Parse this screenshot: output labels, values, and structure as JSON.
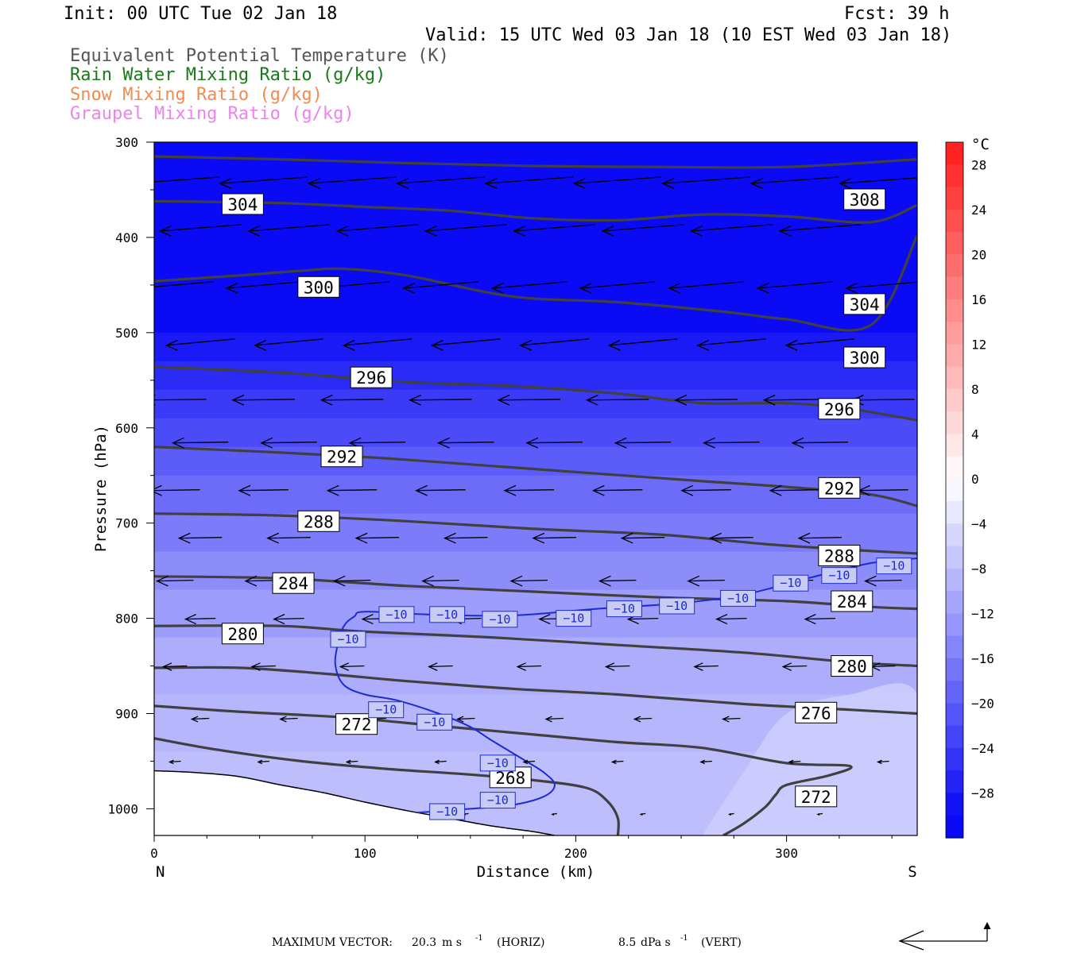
{
  "header": {
    "init": "Init: 00 UTC Tue 02 Jan 18",
    "fcst": "Fcst:   39 h",
    "valid": "Valid: 15 UTC Wed 03 Jan 18 (10 EST Wed 03 Jan 18)",
    "fields": [
      {
        "label": "Equivalent Potential Temperature (K)",
        "color": "#555555"
      },
      {
        "label": "Rain Water Mixing Ratio (g/kg)",
        "color": "#1a7a1a"
      },
      {
        "label": "Snow Mixing Ratio (g/kg)",
        "color": "#f08c50"
      },
      {
        "label": "Graupel Mixing Ratio (g/kg)",
        "color": "#ee82ee"
      }
    ]
  },
  "chart_data": {
    "type": "contour",
    "xlabel": "Distance (km)",
    "ylabel": "Pressure (hPa)",
    "xlim": [
      0,
      362
    ],
    "ylim": [
      1028,
      300
    ],
    "x_ticks": [
      0,
      100,
      200,
      300
    ],
    "y_ticks": [
      300,
      400,
      500,
      600,
      700,
      800,
      900,
      1000
    ],
    "x_end_labels": {
      "left": "N",
      "right": "S"
    },
    "colorbar": {
      "unit": "°C",
      "labels": [
        28,
        24,
        20,
        16,
        12,
        8,
        4,
        0,
        -4,
        -8,
        -12,
        -16,
        -20,
        -24,
        -28
      ],
      "levels": [
        30,
        28,
        26,
        24,
        22,
        20,
        18,
        16,
        14,
        12,
        10,
        8,
        6,
        4,
        2,
        0,
        -2,
        -4,
        -6,
        -8,
        -10,
        -12,
        -14,
        -16,
        -18,
        -20,
        -22,
        -24,
        -26,
        -28,
        -30,
        -32
      ],
      "cold_end_color": "#0a0af5",
      "warm_end_color": "#ff1a1a"
    },
    "theta_e_contours": [
      {
        "value": 308,
        "points": [
          [
            0,
            315
          ],
          [
            60,
            318
          ],
          [
            120,
            322
          ],
          [
            180,
            325
          ],
          [
            240,
            326
          ],
          [
            300,
            326
          ],
          [
            362,
            318
          ]
        ]
      },
      {
        "value": 304,
        "points": [
          [
            0,
            362
          ],
          [
            60,
            364
          ],
          [
            100,
            368
          ],
          [
            140,
            372
          ],
          [
            180,
            380
          ],
          [
            220,
            382
          ],
          [
            260,
            376
          ],
          [
            300,
            378
          ],
          [
            340,
            384
          ],
          [
            362,
            366
          ]
        ]
      },
      {
        "value": 300,
        "points": [
          [
            0,
            446
          ],
          [
            40,
            440
          ],
          [
            70,
            435
          ],
          [
            90,
            433
          ],
          [
            120,
            440
          ],
          [
            170,
            462
          ],
          [
            220,
            468
          ],
          [
            270,
            478
          ],
          [
            300,
            486
          ],
          [
            340,
            492
          ],
          [
            362,
            398
          ]
        ]
      },
      {
        "value": 296,
        "points": [
          [
            0,
            536
          ],
          [
            60,
            542
          ],
          [
            120,
            552
          ],
          [
            170,
            556
          ],
          [
            220,
            564
          ],
          [
            260,
            574
          ],
          [
            300,
            574
          ],
          [
            330,
            580
          ],
          [
            362,
            592
          ]
        ]
      },
      {
        "value": 292,
        "points": [
          [
            0,
            620
          ],
          [
            60,
            626
          ],
          [
            110,
            632
          ],
          [
            160,
            640
          ],
          [
            210,
            648
          ],
          [
            260,
            656
          ],
          [
            300,
            662
          ],
          [
            340,
            670
          ],
          [
            362,
            682
          ]
        ]
      },
      {
        "value": 288,
        "points": [
          [
            0,
            690
          ],
          [
            60,
            692
          ],
          [
            120,
            698
          ],
          [
            180,
            706
          ],
          [
            240,
            712
          ],
          [
            290,
            722
          ],
          [
            330,
            728
          ],
          [
            362,
            732
          ]
        ]
      },
      {
        "value": 284,
        "points": [
          [
            0,
            756
          ],
          [
            60,
            758
          ],
          [
            120,
            766
          ],
          [
            180,
            772
          ],
          [
            240,
            778
          ],
          [
            300,
            782
          ],
          [
            340,
            788
          ],
          [
            362,
            790
          ]
        ]
      },
      {
        "value": 280,
        "points": [
          [
            0,
            808
          ],
          [
            60,
            808
          ],
          [
            100,
            814
          ],
          [
            160,
            820
          ],
          [
            220,
            828
          ],
          [
            280,
            836
          ],
          [
            330,
            846
          ],
          [
            362,
            850
          ]
        ]
      },
      {
        "value": 276,
        "points": [
          [
            0,
            852
          ],
          [
            40,
            852
          ],
          [
            80,
            858
          ],
          [
            120,
            866
          ],
          [
            170,
            874
          ],
          [
            220,
            880
          ],
          [
            280,
            890
          ],
          [
            330,
            896
          ],
          [
            362,
            900
          ]
        ]
      },
      {
        "value": 272,
        "points": [
          [
            0,
            892
          ],
          [
            40,
            898
          ],
          [
            90,
            904
          ],
          [
            130,
            912
          ],
          [
            180,
            922
          ],
          [
            220,
            930
          ],
          [
            260,
            936
          ],
          [
            300,
            952
          ],
          [
            330,
            955
          ],
          [
            320,
            965
          ],
          [
            300,
            975
          ],
          [
            295,
            985
          ],
          [
            290,
            998
          ],
          [
            280,
            1015
          ],
          [
            270,
            1028
          ]
        ]
      },
      {
        "value": 268,
        "points": [
          [
            0,
            926
          ],
          [
            30,
            938
          ],
          [
            70,
            950
          ],
          [
            110,
            958
          ],
          [
            150,
            964
          ],
          [
            180,
            970
          ],
          [
            205,
            978
          ],
          [
            215,
            992
          ],
          [
            220,
            1010
          ],
          [
            220,
            1028
          ]
        ]
      }
    ],
    "theta_e_labels": [
      {
        "value": 308,
        "x": 337,
        "p": 360
      },
      {
        "value": 304,
        "x": 42,
        "p": 365
      },
      {
        "value": 300,
        "x": 78,
        "p": 452
      },
      {
        "value": 304,
        "x": 337,
        "p": 470
      },
      {
        "value": 300,
        "x": 337,
        "p": 526
      },
      {
        "value": 296,
        "x": 103,
        "p": 547
      },
      {
        "value": 296,
        "x": 325,
        "p": 580
      },
      {
        "value": 292,
        "x": 89,
        "p": 630
      },
      {
        "value": 292,
        "x": 325,
        "p": 663
      },
      {
        "value": 288,
        "x": 78,
        "p": 698
      },
      {
        "value": 288,
        "x": 325,
        "p": 734
      },
      {
        "value": 284,
        "x": 66,
        "p": 763
      },
      {
        "value": 284,
        "x": 331,
        "p": 782
      },
      {
        "value": 280,
        "x": 42,
        "p": 816
      },
      {
        "value": 280,
        "x": 331,
        "p": 850
      },
      {
        "value": 276,
        "x": 314,
        "p": 899
      },
      {
        "value": 272,
        "x": 96,
        "p": 911
      },
      {
        "value": 268,
        "x": 169,
        "p": 967
      },
      {
        "value": 272,
        "x": 314,
        "p": 987
      }
    ],
    "temp_contour_minus10": {
      "value": -10,
      "points": [
        [
          362,
          737
        ],
        [
          340,
          742
        ],
        [
          310,
          758
        ],
        [
          280,
          775
        ],
        [
          250,
          784
        ],
        [
          210,
          790
        ],
        [
          170,
          797
        ],
        [
          130,
          796
        ],
        [
          100,
          793
        ],
        [
          95,
          798
        ],
        [
          90,
          808
        ],
        [
          87,
          828
        ],
        [
          86,
          850
        ],
        [
          90,
          870
        ],
        [
          100,
          880
        ],
        [
          115,
          886
        ],
        [
          135,
          900
        ],
        [
          150,
          914
        ],
        [
          160,
          928
        ],
        [
          175,
          948
        ],
        [
          185,
          962
        ],
        [
          190,
          975
        ],
        [
          185,
          987
        ],
        [
          170,
          996
        ],
        [
          150,
          1000
        ],
        [
          125,
          1004
        ]
      ]
    },
    "temp_labels": [
      {
        "value": "−10",
        "x": 115,
        "p": 796
      },
      {
        "value": "−10",
        "x": 139,
        "p": 796
      },
      {
        "value": "−10",
        "x": 164,
        "p": 801
      },
      {
        "value": "−10",
        "x": 199,
        "p": 800
      },
      {
        "value": "−10",
        "x": 223,
        "p": 790
      },
      {
        "value": "−10",
        "x": 248,
        "p": 787
      },
      {
        "value": "−10",
        "x": 277,
        "p": 779
      },
      {
        "value": "−10",
        "x": 302,
        "p": 763
      },
      {
        "value": "−10",
        "x": 325,
        "p": 755
      },
      {
        "value": "−10",
        "x": 351,
        "p": 745
      },
      {
        "value": "−10",
        "x": 92,
        "p": 822
      },
      {
        "value": "−10",
        "x": 110,
        "p": 896
      },
      {
        "value": "−10",
        "x": 133,
        "p": 909
      },
      {
        "value": "−10",
        "x": 163,
        "p": 952
      },
      {
        "value": "−10",
        "x": 163,
        "p": 991
      },
      {
        "value": "−10",
        "x": 139,
        "p": 1003
      }
    ],
    "terrain": [
      [
        0,
        960
      ],
      [
        20,
        962
      ],
      [
        40,
        966
      ],
      [
        60,
        975
      ],
      [
        80,
        983
      ],
      [
        100,
        993
      ],
      [
        120,
        1002
      ],
      [
        140,
        1010
      ],
      [
        160,
        1018
      ],
      [
        180,
        1024
      ],
      [
        190,
        1028
      ]
    ],
    "max_vector": {
      "horiz_value": "20.3",
      "horiz_unit": "m s",
      "horiz_tag": "(HORIZ)",
      "vert_value": "8.5",
      "vert_unit": "dPa s",
      "vert_tag": "(VERT)",
      "prefix": "MAXIMUM VECTOR:",
      "exponent": "-1"
    }
  }
}
